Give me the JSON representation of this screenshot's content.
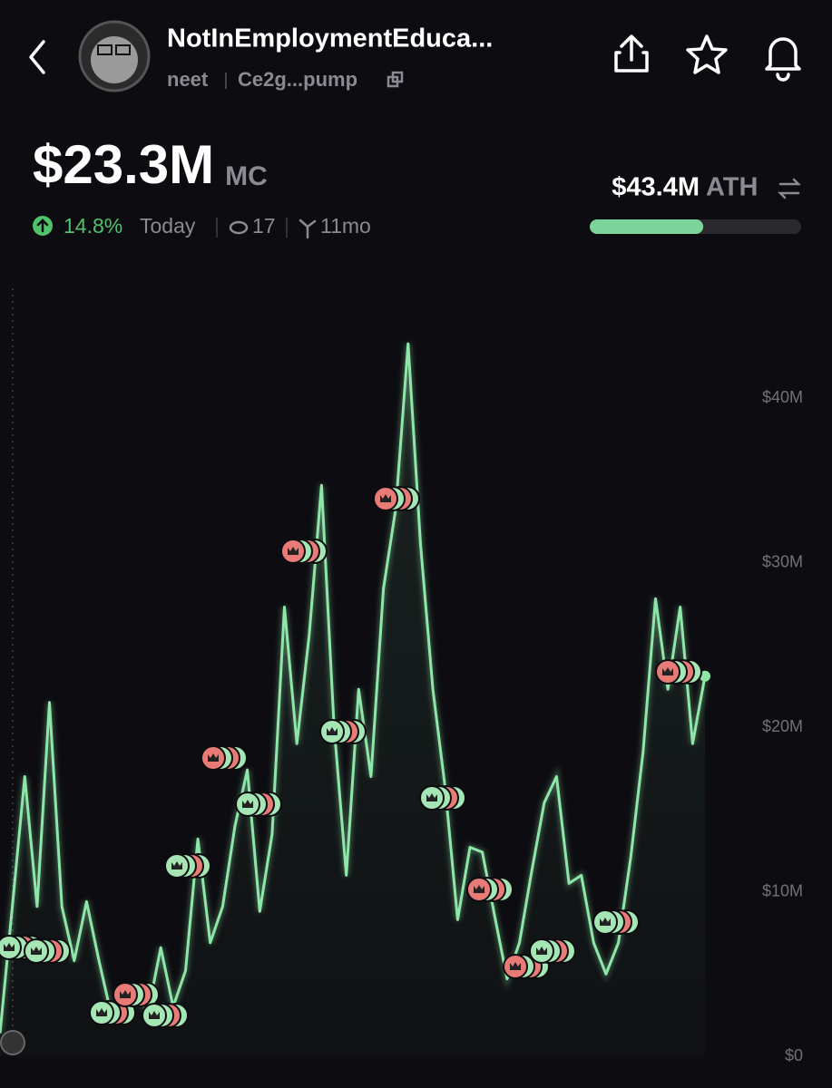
{
  "header": {
    "title": "NotInEmploymentEduca...",
    "ticker": "neet",
    "address": "Ce2g...pump"
  },
  "stats": {
    "market_cap": {
      "value": 23.3,
      "label": "$23.3M"
    },
    "market_cap_unit": "MC",
    "change": "14.8%",
    "change_period": "Today",
    "watchers": "17",
    "age": "11mo",
    "ath": {
      "value": 43.4,
      "label": "$43.4M"
    },
    "ath_unit": "ATH"
  },
  "chart_data": {
    "type": "line",
    "color": "#8fe6a9",
    "values": [
      1.4,
      9.1,
      17,
      9.1,
      21.5,
      9.1,
      5.8,
      9.4,
      5.8,
      2.5,
      2.8,
      3.6,
      2.8,
      6.6,
      3.0,
      5.2,
      13.2,
      6.9,
      9.1,
      14,
      17.4,
      8.8,
      13.5,
      27.3,
      19,
      25.6,
      34.7,
      20.1,
      11,
      22.3,
      17,
      28.4,
      33.3,
      43.3,
      31.1,
      22.3,
      16.3,
      8.3,
      12.7,
      12.4,
      8.5,
      4.7,
      6.9,
      11.3,
      15.4,
      17,
      10.5,
      11,
      6.9,
      5,
      6.9,
      12.1,
      18.5,
      27.8,
      22.3,
      27.3,
      19,
      23.1
    ],
    "ylim": [
      0,
      47
    ],
    "yticks": [
      {
        "value": 0,
        "label": "$0"
      },
      {
        "value": 10,
        "label": "$10M"
      },
      {
        "value": 20,
        "label": "$20M"
      },
      {
        "value": 30,
        "label": "$30M"
      },
      {
        "value": 40,
        "label": "$40M"
      }
    ]
  }
}
